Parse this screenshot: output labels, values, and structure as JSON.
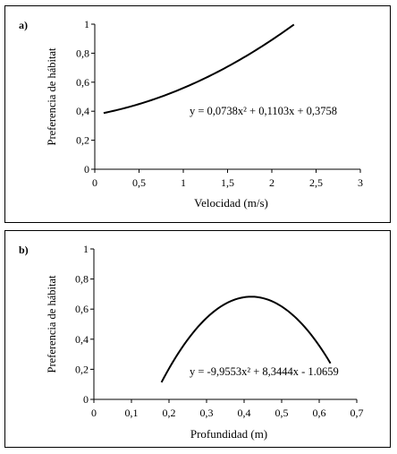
{
  "chart_data": [
    {
      "type": "line",
      "panel_label": "a)",
      "xlabel": "Velocidad (m/s)",
      "ylabel": "Preferencia de hábitat",
      "xlim": [
        0,
        3
      ],
      "ylim": [
        0,
        1
      ],
      "x_ticks": [
        0,
        0.5,
        1,
        1.5,
        2,
        2.5,
        3
      ],
      "x_tick_labels": [
        "0",
        "0,5",
        "1",
        "1,5",
        "2",
        "2,5",
        "3"
      ],
      "y_ticks": [
        0,
        0.2,
        0.4,
        0.6,
        0.8,
        1
      ],
      "y_tick_labels": [
        "0",
        "0,2",
        "0,4",
        "0,6",
        "0,8",
        "1"
      ],
      "equation": "y = 0,0738x² + 0,1103x + 0,3758",
      "coefficients": [
        0.0738,
        0.1103,
        0.3758
      ],
      "x_range": [
        0.1,
        2.25
      ],
      "grid": false
    },
    {
      "type": "line",
      "panel_label": "b)",
      "xlabel": "Profundidad (m)",
      "ylabel": "Preferencia de hábitat",
      "xlim": [
        0,
        0.7
      ],
      "ylim": [
        0,
        1
      ],
      "x_ticks": [
        0,
        0.1,
        0.2,
        0.3,
        0.4,
        0.5,
        0.6,
        0.7
      ],
      "x_tick_labels": [
        "0",
        "0,1",
        "0,2",
        "0,3",
        "0,4",
        "0,5",
        "0,6",
        "0,7"
      ],
      "y_ticks": [
        0,
        0.2,
        0.4,
        0.6,
        0.8,
        1
      ],
      "y_tick_labels": [
        "0",
        "0,2",
        "0,4",
        "0,6",
        "0,8",
        "1"
      ],
      "equation": "y = -9,9553x² + 8,3444x - 1.0659",
      "coefficients": [
        -9.9553,
        8.3444,
        -1.0659
      ],
      "x_range": [
        0.18,
        0.63
      ],
      "grid": false
    }
  ]
}
